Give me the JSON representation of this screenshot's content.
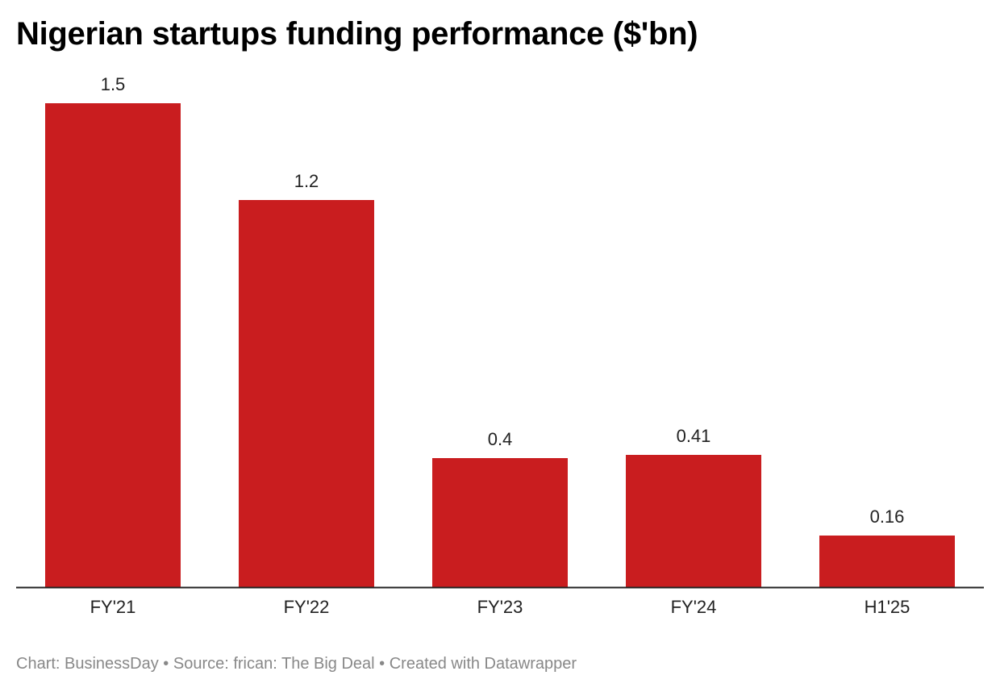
{
  "chart_data": {
    "type": "bar",
    "title": "Nigerian startups funding performance ($'bn)",
    "categories": [
      "FY'21",
      "FY'22",
      "FY'23",
      "FY'24",
      "H1'25"
    ],
    "values": [
      1.5,
      1.2,
      0.4,
      0.41,
      0.16
    ],
    "value_labels": [
      "1.5",
      "1.2",
      "0.4",
      "0.41",
      "0.16"
    ],
    "xlabel": "",
    "ylabel": "",
    "ylim": [
      0,
      1.5
    ],
    "grid": false,
    "bar_color": "#c91d1f"
  },
  "footer": "Chart: BusinessDay • Source: frican: The Big Deal • Created with Datawrapper"
}
